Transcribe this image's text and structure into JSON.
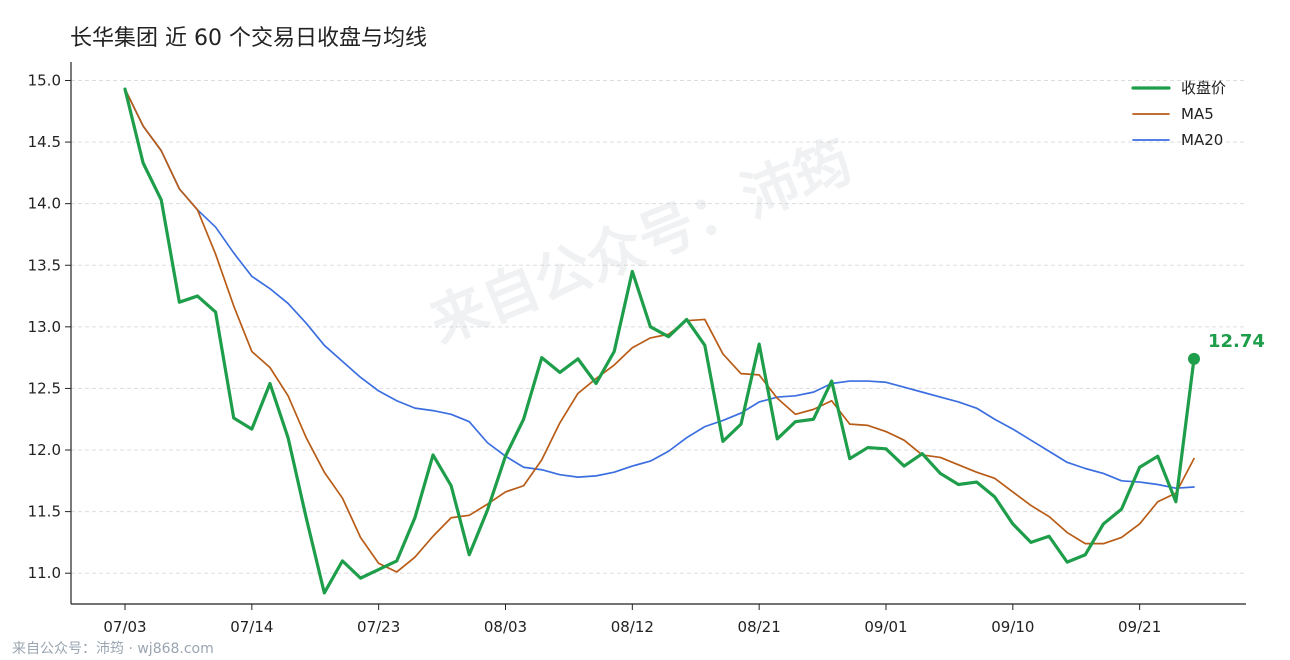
{
  "title": "长华集团 近 60 个交易日收盘与均线",
  "watermark": "来自公众号：沛筠",
  "footer": "来自公众号：沛筠 · wj868.com",
  "colors": {
    "close": "#1e9e4a",
    "ma5": "#b85c17",
    "ma20": "#3b6fe0",
    "grid": "#dddddd",
    "axis": "#222222",
    "watermark": "#b8bec8"
  },
  "chart_data": {
    "type": "line",
    "title": "长华集团 近 60 个交易日收盘与均线",
    "xlabel": "",
    "ylabel": "",
    "ylim": [
      10.75,
      15.15
    ],
    "yticks": [
      11.0,
      11.5,
      12.0,
      12.5,
      13.0,
      13.5,
      14.0,
      14.5,
      15.0
    ],
    "ytick_labels": [
      "11.0",
      "11.5",
      "12.0",
      "12.5",
      "13.0",
      "13.5",
      "14.0",
      "14.5",
      "15.0"
    ],
    "grid": true,
    "legend_position": "top-right",
    "x_tick_labels": [
      "07/03",
      "07/14",
      "07/23",
      "08/03",
      "08/12",
      "08/21",
      "09/01",
      "09/10",
      "09/21"
    ],
    "x_tick_indices": [
      0,
      7,
      14,
      21,
      28,
      35,
      42,
      49,
      56
    ],
    "last_value_label": "12.74",
    "series": [
      {
        "name": "收盘价",
        "key": "close",
        "values": [
          14.93,
          14.33,
          14.03,
          13.2,
          13.25,
          13.12,
          12.26,
          12.17,
          12.54,
          12.1,
          11.45,
          10.84,
          11.1,
          10.96,
          11.03,
          11.1,
          11.45,
          11.96,
          11.71,
          11.15,
          11.51,
          11.95,
          12.25,
          12.75,
          12.63,
          12.74,
          12.54,
          12.8,
          13.45,
          13.0,
          12.92,
          13.06,
          12.85,
          12.07,
          12.21,
          12.86,
          12.09,
          12.23,
          12.25,
          12.56,
          11.93,
          12.02,
          12.01,
          11.87,
          11.97,
          11.81,
          11.72,
          11.74,
          11.62,
          11.4,
          11.25,
          11.3,
          11.09,
          11.15,
          11.4,
          11.52,
          11.86,
          11.95,
          11.58,
          12.74
        ]
      },
      {
        "name": "MA5",
        "key": "ma5",
        "values": [
          14.93,
          14.63,
          14.43,
          14.12,
          13.95,
          13.59,
          13.17,
          12.8,
          12.67,
          12.44,
          12.1,
          11.82,
          11.61,
          11.29,
          11.08,
          11.01,
          11.13,
          11.3,
          11.45,
          11.47,
          11.56,
          11.66,
          11.71,
          11.92,
          12.22,
          12.46,
          12.58,
          12.69,
          12.83,
          12.91,
          12.94,
          13.05,
          13.06,
          12.78,
          12.62,
          12.61,
          12.42,
          12.29,
          12.33,
          12.4,
          12.21,
          12.2,
          12.15,
          12.08,
          11.96,
          11.94,
          11.88,
          11.82,
          11.77,
          11.66,
          11.55,
          11.46,
          11.33,
          11.24,
          11.24,
          11.29,
          11.4,
          11.58,
          11.65,
          11.93
        ]
      },
      {
        "name": "MA20",
        "key": "ma20",
        "values": [
          14.93,
          14.63,
          14.43,
          14.12,
          13.95,
          13.81,
          13.6,
          13.41,
          13.31,
          13.19,
          13.03,
          12.85,
          12.72,
          12.59,
          12.48,
          12.4,
          12.34,
          12.32,
          12.29,
          12.23,
          12.06,
          11.95,
          11.86,
          11.84,
          11.8,
          11.78,
          11.79,
          11.82,
          11.87,
          11.91,
          11.99,
          12.1,
          12.19,
          12.24,
          12.3,
          12.39,
          12.43,
          12.44,
          12.47,
          12.54,
          12.56,
          12.56,
          12.55,
          12.51,
          12.47,
          12.43,
          12.39,
          12.34,
          12.25,
          12.17,
          12.08,
          11.99,
          11.9,
          11.85,
          11.81,
          11.75,
          11.74,
          11.72,
          11.69,
          11.7
        ]
      }
    ]
  }
}
